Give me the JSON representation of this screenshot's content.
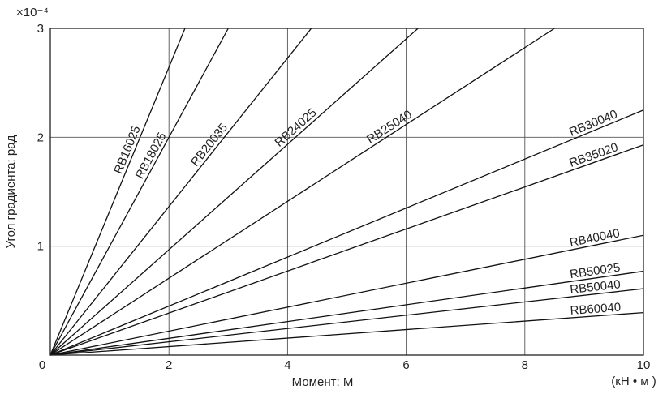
{
  "chart_data": {
    "type": "line",
    "xlabel": "Момент: M",
    "xunit": "(кН • м )",
    "ylabel": "Угол градиента: рад",
    "yscale_label": "×10⁻⁴",
    "xlim": [
      0,
      10
    ],
    "ylim": [
      0,
      3
    ],
    "xticks": [
      "0",
      "2",
      "4",
      "6",
      "8",
      "10"
    ],
    "yticks": [
      "1",
      "2",
      "3"
    ],
    "grid": true,
    "series": [
      {
        "name": "RB16025",
        "x": [
          0,
          2.27
        ],
        "y": [
          0,
          3.0
        ]
      },
      {
        "name": "RB18025",
        "x": [
          0,
          3.0
        ],
        "y": [
          0,
          3.0
        ]
      },
      {
        "name": "RB20035",
        "x": [
          0,
          4.4
        ],
        "y": [
          0,
          3.0
        ]
      },
      {
        "name": "RB24025",
        "x": [
          0,
          6.2
        ],
        "y": [
          0,
          3.0
        ]
      },
      {
        "name": "RB25040",
        "x": [
          0,
          8.5
        ],
        "y": [
          0,
          3.0
        ]
      },
      {
        "name": "RB30040",
        "x": [
          0,
          10
        ],
        "y": [
          0,
          2.25
        ]
      },
      {
        "name": "RB35020",
        "x": [
          0,
          10
        ],
        "y": [
          0,
          1.93
        ]
      },
      {
        "name": "RB40040",
        "x": [
          0,
          10
        ],
        "y": [
          0,
          1.1
        ]
      },
      {
        "name": "RB50025",
        "x": [
          0,
          10
        ],
        "y": [
          0,
          0.77
        ]
      },
      {
        "name": "RB50040",
        "x": [
          0,
          10
        ],
        "y": [
          0,
          0.61
        ]
      },
      {
        "name": "RB60040",
        "x": [
          0,
          10
        ],
        "y": [
          0,
          0.39
        ]
      }
    ]
  }
}
